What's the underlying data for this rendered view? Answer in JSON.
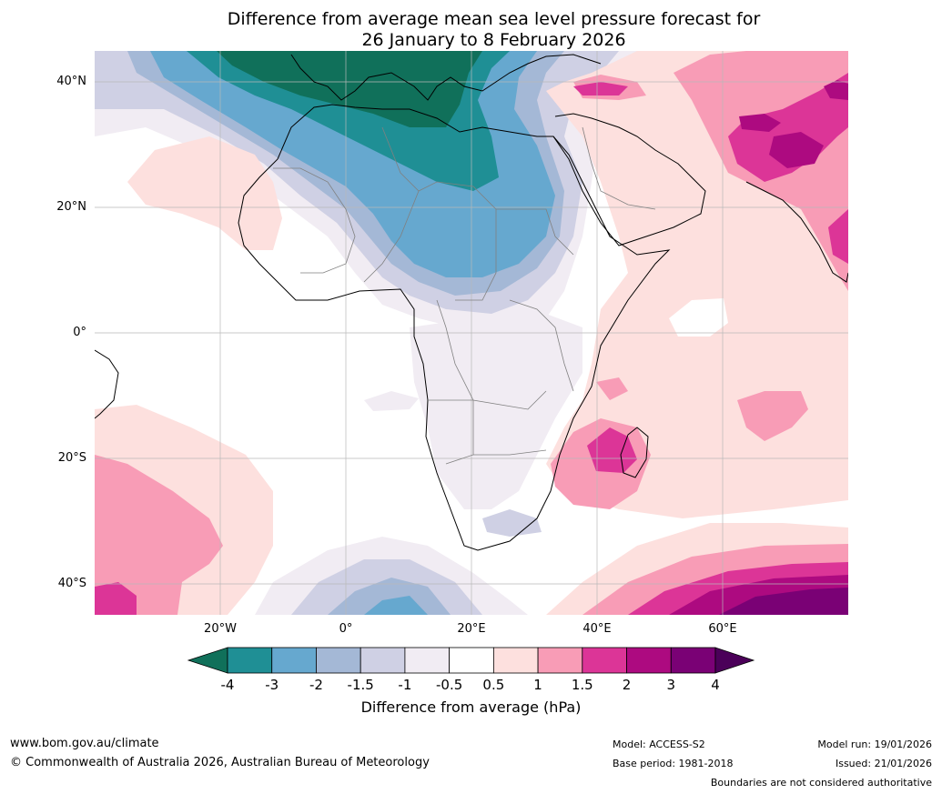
{
  "title": {
    "line1": "Difference from average mean sea level pressure forecast for",
    "line2": "26 January to 8 February 2026"
  },
  "axes": {
    "lat_labels": [
      "40°N",
      "20°N",
      "0°",
      "20°S",
      "40°S"
    ],
    "lon_labels": [
      "20°W",
      "0°",
      "20°E",
      "40°E",
      "60°E"
    ]
  },
  "colorbar": {
    "labels": [
      "-4",
      "-3",
      "-2",
      "-1.5",
      "-1",
      "-0.5",
      "0.5",
      "1",
      "1.5",
      "2",
      "3",
      "4"
    ],
    "colors": [
      "#10705a",
      "#1f8f95",
      "#66a8cf",
      "#a4b8d6",
      "#cfd0e4",
      "#f1ecf3",
      "#ffffff",
      "#fde0de",
      "#f89cb6",
      "#dc3597",
      "#ad0a80",
      "#7a0175",
      "#4b0059"
    ],
    "title": "Difference from average (hPa)"
  },
  "footer": {
    "url": "www.bom.gov.au/climate",
    "copyright": "© Commonwealth of Australia 2026, Australian Bureau of Meteorology",
    "model": "Model: ACCESS-S2",
    "base_period": "Base period: 1981-2018",
    "model_run": "Model run: 19/01/2026",
    "issued": "Issued: 21/01/2026",
    "disclaimer": "Boundaries are not considered authoritative"
  }
}
